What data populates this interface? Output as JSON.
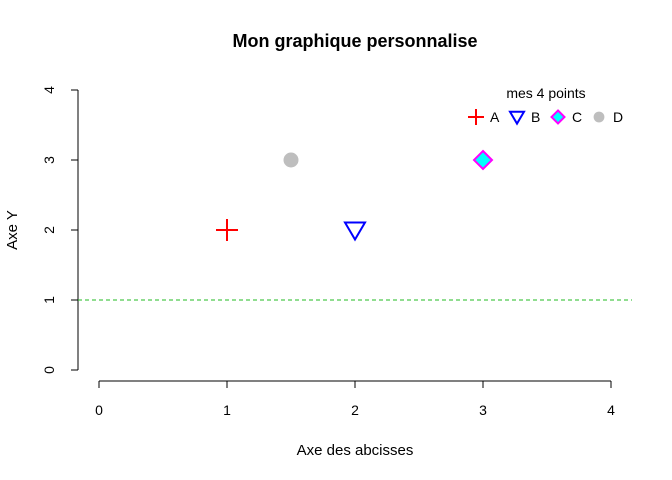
{
  "chart_data": {
    "type": "scatter",
    "title": "Mon graphique personnalise",
    "xlabel": "Axe des abcisses",
    "ylabel": "Axe Y",
    "xlim": [
      0,
      4
    ],
    "ylim": [
      0,
      4
    ],
    "x_ticks": [
      "0",
      "1",
      "2",
      "3",
      "4"
    ],
    "y_ticks": [
      "0",
      "1",
      "2",
      "3",
      "4"
    ],
    "grid": false,
    "points": [
      {
        "label": "A",
        "x": 1,
        "y": 2,
        "shape": "plus",
        "color": "#ff0000",
        "fill": "none"
      },
      {
        "label": "B",
        "x": 2,
        "y": 2,
        "shape": "triangle-down",
        "color": "#0000ff",
        "fill": "none"
      },
      {
        "label": "C",
        "x": 3,
        "y": 3,
        "shape": "diamond",
        "color": "#ff00ff",
        "fill": "#00ffff"
      },
      {
        "label": "D",
        "x": 1.5,
        "y": 3,
        "shape": "circle",
        "color": "#bebebe",
        "fill": "#bebebe"
      }
    ],
    "reference_line": {
      "y": 1,
      "color": "#22bb22",
      "style": "dashed"
    },
    "legend": {
      "title": "mes 4 points",
      "placement": "top-right",
      "entries": [
        "A",
        "B",
        "C",
        "D"
      ]
    }
  }
}
